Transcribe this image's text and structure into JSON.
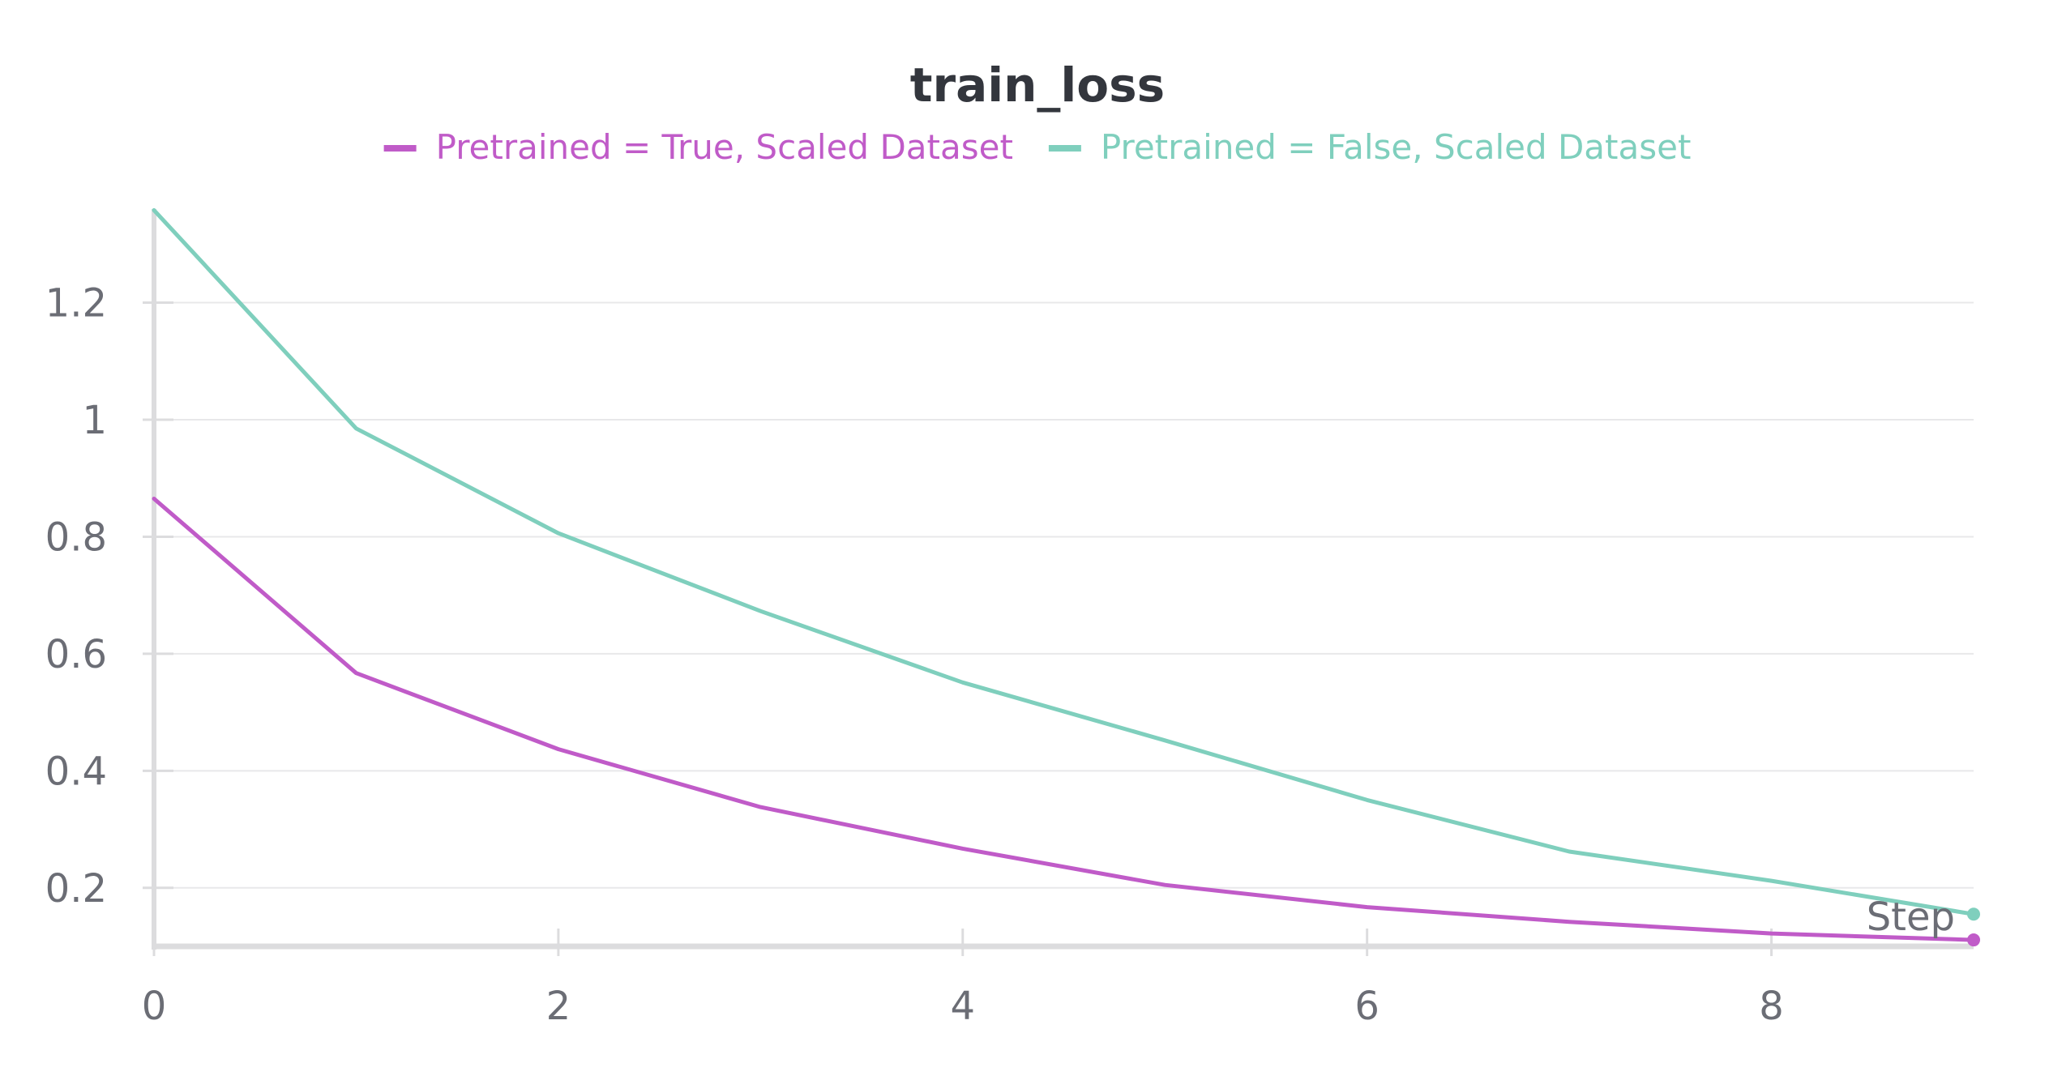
{
  "chart_data": {
    "type": "line",
    "title": "train_loss",
    "xlabel": "Step",
    "ylabel": "",
    "xlim": [
      0,
      9
    ],
    "ylim": [
      0.1,
      1.36
    ],
    "x_ticks": [
      0,
      2,
      4,
      6,
      8
    ],
    "y_ticks": [
      0.2,
      0.4,
      0.6,
      0.8,
      1,
      1.2
    ],
    "x_tick_labels": [
      "0",
      "2",
      "4",
      "6",
      "8"
    ],
    "y_tick_labels": [
      "0.2",
      "0.4",
      "0.6",
      "0.8",
      "1",
      "1.2"
    ],
    "grid": "horizontal",
    "legend_position": "top",
    "x": [
      0,
      1,
      2,
      3,
      4,
      5,
      6,
      7,
      8,
      9
    ],
    "series": [
      {
        "name": "Pretrained = True, Scaled Dataset",
        "color": "#c05bc8",
        "values": [
          0.865,
          0.567,
          0.437,
          0.338,
          0.267,
          0.205,
          0.167,
          0.142,
          0.122,
          0.111
        ]
      },
      {
        "name": "Pretrained = False, Scaled Dataset",
        "color": "#7fcfbd",
        "values": [
          1.358,
          0.985,
          0.806,
          0.673,
          0.551,
          0.452,
          0.35,
          0.262,
          0.212,
          0.155
        ]
      }
    ]
  },
  "colors": {
    "grid": "#e8e8ea",
    "axis": "#dcdcde",
    "text": "#6b6d75",
    "title": "#33363d"
  }
}
